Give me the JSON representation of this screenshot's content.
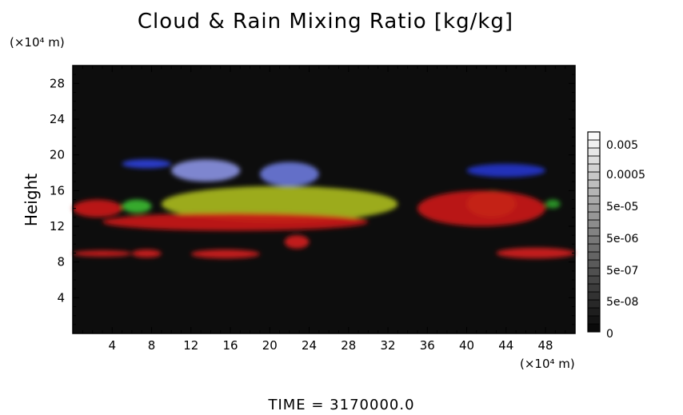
{
  "chart_data": {
    "type": "heatmap",
    "title": "Cloud & Rain Mixing Ratio [kg/kg]",
    "ylabel": "Height",
    "y_unit": "(×10⁴ m)",
    "x_unit": "(×10⁴ m)",
    "xlim": [
      0,
      51
    ],
    "ylim": [
      0,
      30
    ],
    "x_ticks": [
      4,
      8,
      12,
      16,
      20,
      24,
      28,
      32,
      36,
      40,
      44,
      48
    ],
    "y_ticks": [
      4,
      8,
      12,
      16,
      20,
      24,
      28
    ],
    "colorbar": {
      "labels": [
        "0.005",
        "0.0005",
        "5e-05",
        "5e-06",
        "5e-07",
        "5e-08",
        "0"
      ]
    },
    "background_color": "#0d0d0d",
    "regions": [
      {
        "color": "#2a3fd8",
        "x": [
          5,
          10
        ],
        "y": [
          18.5,
          19.5
        ]
      },
      {
        "color": "#8890e0",
        "x": [
          10,
          17
        ],
        "y": [
          17,
          19.5
        ]
      },
      {
        "color": "#6a78d8",
        "x": [
          19,
          25
        ],
        "y": [
          16.5,
          19.2
        ]
      },
      {
        "color": "#2435c8",
        "x": [
          40,
          48
        ],
        "y": [
          17.5,
          19
        ]
      },
      {
        "color": "#a8b820",
        "x": [
          9,
          33
        ],
        "y": [
          12.5,
          16.5
        ]
      },
      {
        "color": "#a8b820",
        "x": [
          40,
          45
        ],
        "y": [
          13,
          16
        ]
      },
      {
        "color": "#3ab830",
        "x": [
          5,
          8
        ],
        "y": [
          13.5,
          15
        ]
      },
      {
        "color": "#2a9a28",
        "x": [
          48,
          49.5
        ],
        "y": [
          14,
          15
        ]
      },
      {
        "color": "#c81818",
        "x": [
          0,
          5
        ],
        "y": [
          13,
          15
        ]
      },
      {
        "color": "#c81818",
        "x": [
          3,
          30
        ],
        "y": [
          11.5,
          13.5
        ]
      },
      {
        "color": "#c81818",
        "x": [
          35,
          48
        ],
        "y": [
          12,
          16
        ]
      },
      {
        "color": "#d02020",
        "x": [
          0,
          6
        ],
        "y": [
          8.6,
          9.3
        ]
      },
      {
        "color": "#d02020",
        "x": [
          6,
          9
        ],
        "y": [
          8.5,
          9.4
        ]
      },
      {
        "color": "#d02020",
        "x": [
          12,
          19
        ],
        "y": [
          8.4,
          9.4
        ]
      },
      {
        "color": "#d02020",
        "x": [
          21.5,
          24
        ],
        "y": [
          9.5,
          11
        ]
      },
      {
        "color": "#d02020",
        "x": [
          43,
          51
        ],
        "y": [
          8.4,
          9.6
        ]
      }
    ]
  },
  "footer": {
    "time_label": "TIME = 3170000.0"
  }
}
